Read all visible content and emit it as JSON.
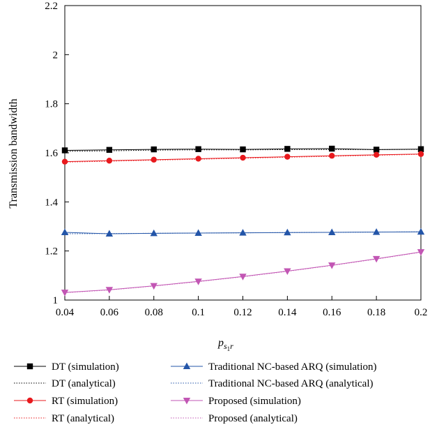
{
  "chart_data": {
    "type": "line",
    "ylabel": "Transmission bandwidth",
    "xlabel_main": "p",
    "xlabel_sub1": "s",
    "xlabel_sub2": "1",
    "xlabel_sub3": "r",
    "x": [
      0.04,
      0.06,
      0.08,
      0.1,
      0.12,
      0.14,
      0.16,
      0.18,
      0.2
    ],
    "xlim": [
      0.04,
      0.2
    ],
    "ylim": [
      1,
      2.2
    ],
    "x_ticks": [
      "0.04",
      "0.06",
      "0.08",
      "0.1",
      "0.12",
      "0.14",
      "0.16",
      "0.18",
      "0.2"
    ],
    "x_tick_values": [
      0.04,
      0.06,
      0.08,
      0.1,
      0.12,
      0.14,
      0.16,
      0.18,
      0.2
    ],
    "y_ticks": [
      "1",
      "1.2",
      "1.4",
      "1.6",
      "1.8",
      "2",
      "2.2"
    ],
    "y_tick_values": [
      1,
      1.2,
      1.4,
      1.6,
      1.8,
      2,
      2.2
    ],
    "grid": false,
    "legend_placement": "below",
    "series": [
      {
        "name": "DT (simulation)",
        "color": "#000000",
        "marker": "square",
        "style": "solid",
        "values": [
          1.61,
          1.612,
          1.614,
          1.615,
          1.614,
          1.616,
          1.617,
          1.613,
          1.615
        ]
      },
      {
        "name": "DT (analytical)",
        "color": "#000000",
        "marker": "none",
        "style": "dotted",
        "values": [
          1.606,
          1.608,
          1.611,
          1.612,
          1.612,
          1.613,
          1.613,
          1.613,
          1.614
        ]
      },
      {
        "name": "RT (simulation)",
        "color": "#e8191d",
        "marker": "circle",
        "style": "solid",
        "values": [
          1.564,
          1.568,
          1.572,
          1.576,
          1.58,
          1.584,
          1.588,
          1.592,
          1.595
        ]
      },
      {
        "name": "RT (analytical)",
        "color": "#e8191d",
        "marker": "none",
        "style": "dotted",
        "values": [
          1.562,
          1.566,
          1.57,
          1.574,
          1.578,
          1.582,
          1.586,
          1.59,
          1.594
        ]
      },
      {
        "name": "Traditional NC-based ARQ (simulation)",
        "color": "#2355a8",
        "marker": "triangle-up",
        "style": "solid",
        "values": [
          1.276,
          1.27,
          1.272,
          1.273,
          1.274,
          1.275,
          1.276,
          1.277,
          1.278
        ]
      },
      {
        "name": "Traditional NC-based ARQ (analytical)",
        "color": "#2355a8",
        "marker": "none",
        "style": "dotted",
        "values": [
          1.27,
          1.271,
          1.272,
          1.273,
          1.274,
          1.275,
          1.276,
          1.277,
          1.278
        ]
      },
      {
        "name": "Proposed (simulation)",
        "color": "#c256b4",
        "marker": "triangle-down",
        "style": "solid",
        "values": [
          1.031,
          1.042,
          1.058,
          1.076,
          1.096,
          1.118,
          1.142,
          1.168,
          1.196
        ]
      },
      {
        "name": "Proposed (analytical)",
        "color": "#c256b4",
        "marker": "none",
        "style": "dotted",
        "values": [
          1.03,
          1.041,
          1.057,
          1.075,
          1.095,
          1.117,
          1.141,
          1.167,
          1.195
        ]
      }
    ]
  }
}
